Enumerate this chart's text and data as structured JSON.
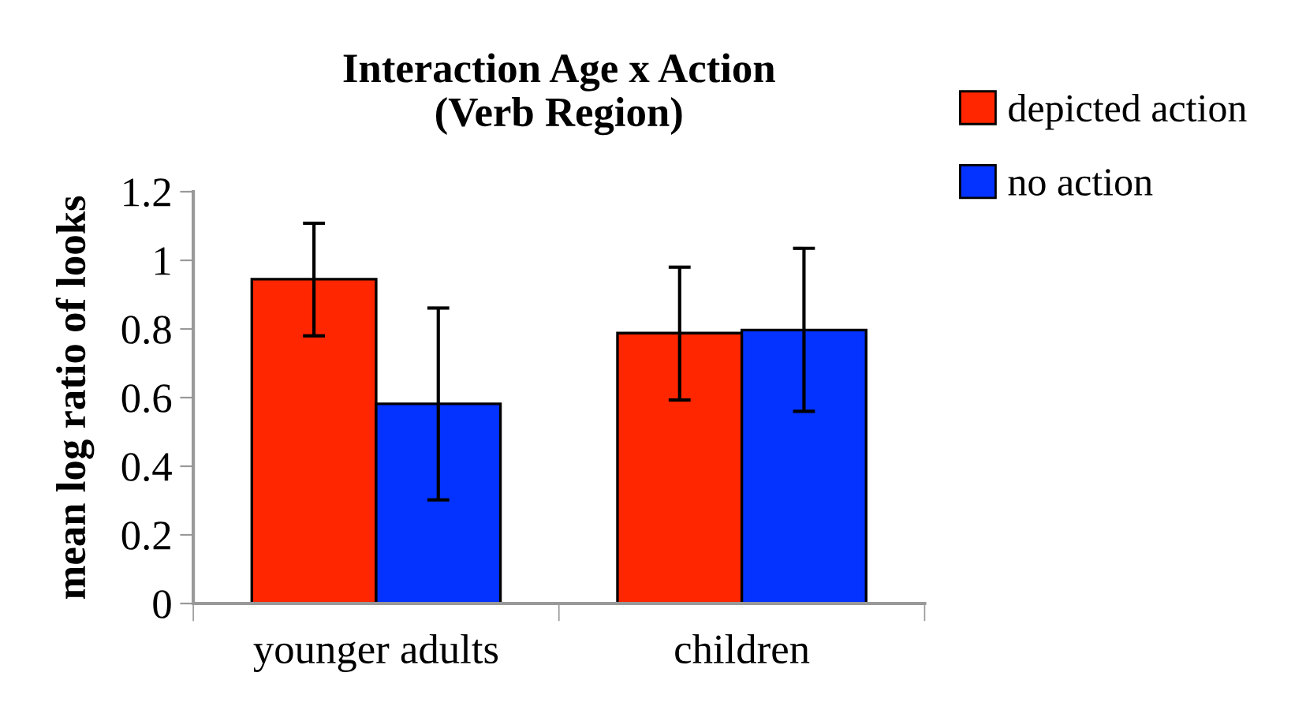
{
  "chart_data": {
    "type": "bar",
    "title": "Interaction Age x Action\n(Verb Region)",
    "ylabel": "mean log ratio of looks",
    "categories": [
      "younger adults",
      "children"
    ],
    "series": [
      {
        "name": "depicted action",
        "color": "#ff2600",
        "values": [
          0.945,
          0.788
        ],
        "errors": [
          [
            0.78,
            1.108
          ],
          [
            0.593,
            0.98
          ]
        ]
      },
      {
        "name": "no action",
        "color": "#0433ff",
        "values": [
          0.582,
          0.797
        ],
        "errors": [
          [
            0.302,
            0.861
          ],
          [
            0.56,
            1.035
          ]
        ]
      }
    ],
    "ylim": [
      0,
      1.2
    ],
    "yticks": [
      0,
      0.2,
      0.4,
      0.6,
      0.8,
      1,
      1.2
    ],
    "grid": false,
    "legend": "top right"
  }
}
